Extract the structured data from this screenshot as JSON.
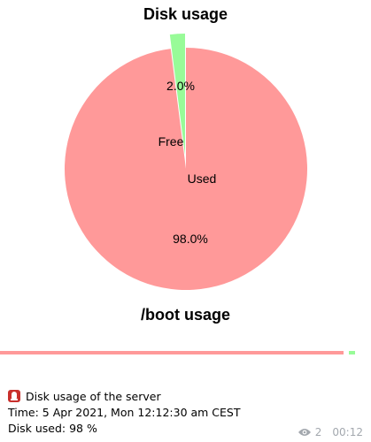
{
  "chart_data": [
    {
      "type": "pie",
      "title": "Disk usage",
      "slices": [
        {
          "label": "Free",
          "value": 2.0,
          "pct_label": "2.0%",
          "color": "#98fb98"
        },
        {
          "label": "Used",
          "value": 98.0,
          "pct_label": "98.0%",
          "color": "#ff9999"
        }
      ]
    },
    {
      "type": "pie",
      "title": "/boot usage"
    }
  ],
  "message": {
    "icon": "siren-icon",
    "caption_line1": "Disk usage of the server",
    "caption_line2": "Time:  5 Apr 2021, Mon 12:12:30 am CEST",
    "caption_line3": "Disk used: 98 %",
    "views": "2",
    "time": "00:12"
  }
}
